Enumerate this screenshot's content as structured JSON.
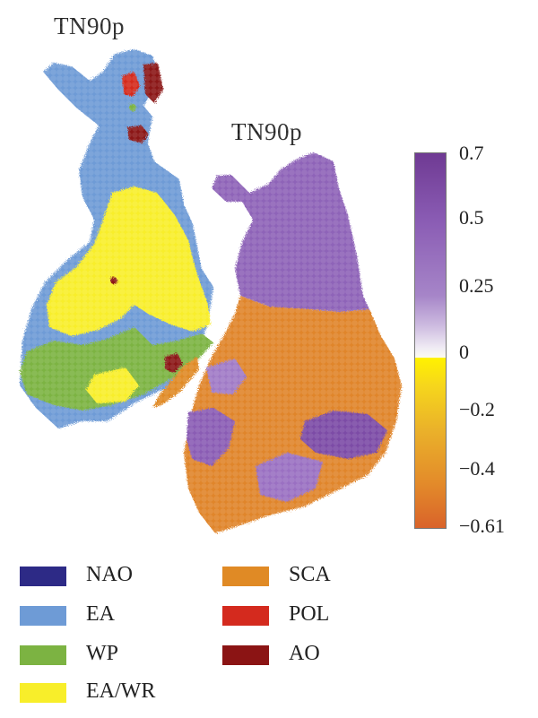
{
  "maps": {
    "left_title": "TN90p",
    "right_title": "TN90p"
  },
  "colorbar": {
    "ticks": [
      "0.7",
      "0.5",
      "0.25",
      "0",
      "−0.2",
      "−0.4",
      "−0.61"
    ],
    "positive_color": "#7b4ba6",
    "negative_color": "#e0852a"
  },
  "legend": {
    "items": [
      {
        "label": "NAO",
        "color": "#2d2a86"
      },
      {
        "label": "SCA",
        "color": "#e08a25"
      },
      {
        "label": "EA",
        "color": "#6e9bd6"
      },
      {
        "label": "POL",
        "color": "#d42a1e"
      },
      {
        "label": "WP",
        "color": "#7cb342"
      },
      {
        "label": "AO",
        "color": "#8b1414"
      },
      {
        "label": "EA/WR",
        "color": "#f8ee2a"
      }
    ]
  }
}
